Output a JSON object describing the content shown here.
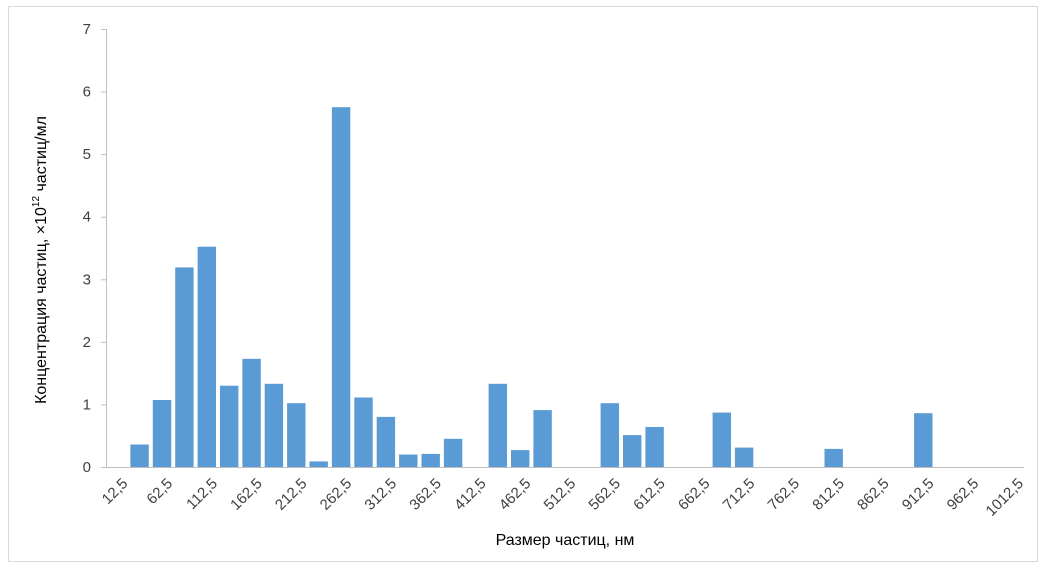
{
  "chart_data": {
    "type": "bar",
    "xlabel": "Размер частиц, нм",
    "ylabel": {
      "before": "Концентрация частиц, ×10",
      "superscript": "12",
      "after": " частиц/мл"
    },
    "ylim": [
      0,
      7
    ],
    "yticks": [
      "0",
      "1",
      "2",
      "3",
      "4",
      "5",
      "6",
      "7"
    ],
    "grid": false,
    "bar_color": "#5b9bd5",
    "categories": [
      "12,5",
      "37,5",
      "62,5",
      "87,5",
      "112,5",
      "137,5",
      "162,5",
      "187,5",
      "212,5",
      "237,5",
      "262,5",
      "287,5",
      "312,5",
      "337,5",
      "362,5",
      "387,5",
      "412,5",
      "437,5",
      "462,5",
      "487,5",
      "512,5",
      "537,5",
      "562,5",
      "587,5",
      "612,5",
      "637,5",
      "662,5",
      "687,5",
      "712,5",
      "737,5",
      "762,5",
      "787,5",
      "812,5",
      "837,5",
      "862,5",
      "887,5",
      "912,5",
      "937,5",
      "962,5",
      "987,5",
      "1012,5"
    ],
    "x_tick_labels": [
      "12,5",
      "62,5",
      "112,5",
      "162,5",
      "212,5",
      "262,5",
      "312,5",
      "362,5",
      "412,5",
      "462,5",
      "512,5",
      "562,5",
      "612,5",
      "662,5",
      "712,5",
      "762,5",
      "812,5",
      "862,5",
      "912,5",
      "962,5",
      "1012,5"
    ],
    "values": [
      0,
      0.36,
      1.07,
      3.19,
      3.52,
      1.3,
      1.73,
      1.33,
      1.02,
      0.09,
      5.75,
      1.11,
      0.8,
      0.2,
      0.21,
      0.45,
      0,
      1.33,
      0.27,
      0.91,
      0,
      0,
      1.02,
      0.51,
      0.64,
      0,
      0,
      0.87,
      0.31,
      0,
      0,
      0,
      0.29,
      0,
      0,
      0,
      0.86,
      0,
      0,
      0,
      0
    ]
  }
}
